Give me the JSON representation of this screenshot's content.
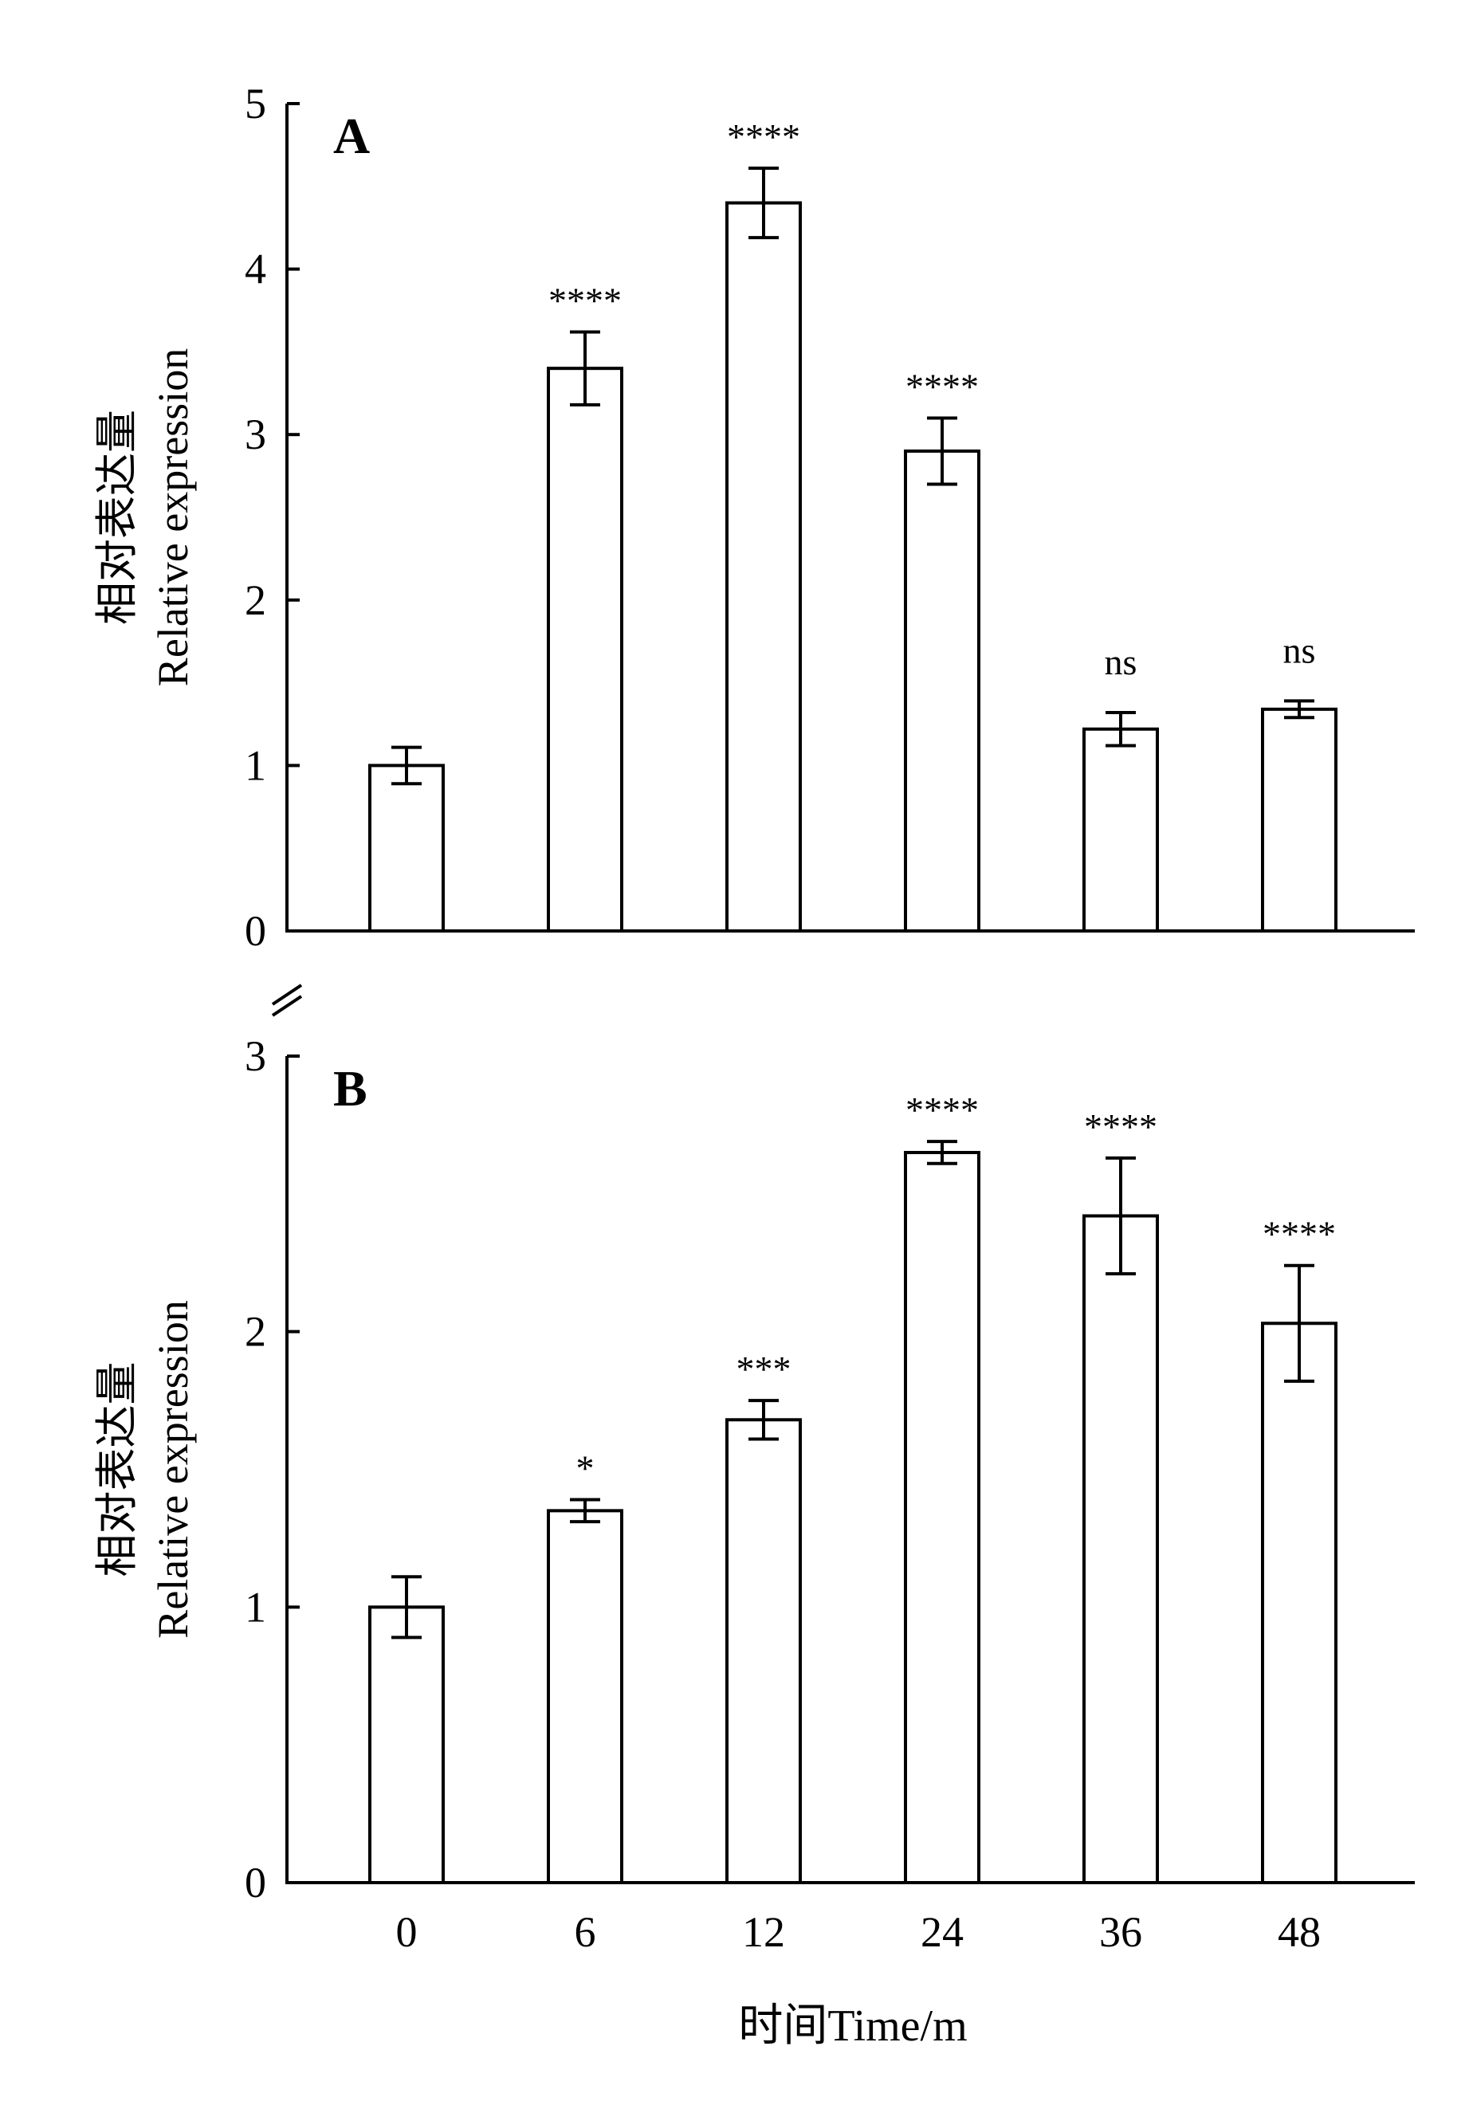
{
  "figure": {
    "x_axis_label": "时间Time/m"
  },
  "chart_data": [
    {
      "type": "bar",
      "panel_label": "A",
      "ylabel_line1": "相对表达量",
      "ylabel_line2": "Relative expression",
      "categories": [
        "0",
        "6",
        "12",
        "24",
        "36",
        "48"
      ],
      "values": [
        1.0,
        3.4,
        4.4,
        2.9,
        1.22,
        1.34
      ],
      "errors": [
        0.11,
        0.22,
        0.21,
        0.2,
        0.1,
        0.05
      ],
      "significance": [
        "",
        "****",
        "****",
        "****",
        "ns",
        "ns"
      ],
      "ylim": [
        0,
        5
      ],
      "yticks": [
        0,
        1,
        2,
        3,
        4,
        5
      ],
      "grid": false
    },
    {
      "type": "bar",
      "panel_label": "B",
      "ylabel_line1": "相对表达量",
      "ylabel_line2": "Relative expression",
      "categories": [
        "0",
        "6",
        "12",
        "24",
        "36",
        "48"
      ],
      "values": [
        1.0,
        1.35,
        1.68,
        2.65,
        2.42,
        2.03
      ],
      "errors": [
        0.11,
        0.04,
        0.07,
        0.04,
        0.21,
        0.21
      ],
      "significance": [
        "",
        "*",
        "***",
        "****",
        "****",
        "****"
      ],
      "ylim": [
        0,
        3
      ],
      "yticks": [
        0,
        1,
        2,
        3
      ],
      "grid": false
    }
  ]
}
